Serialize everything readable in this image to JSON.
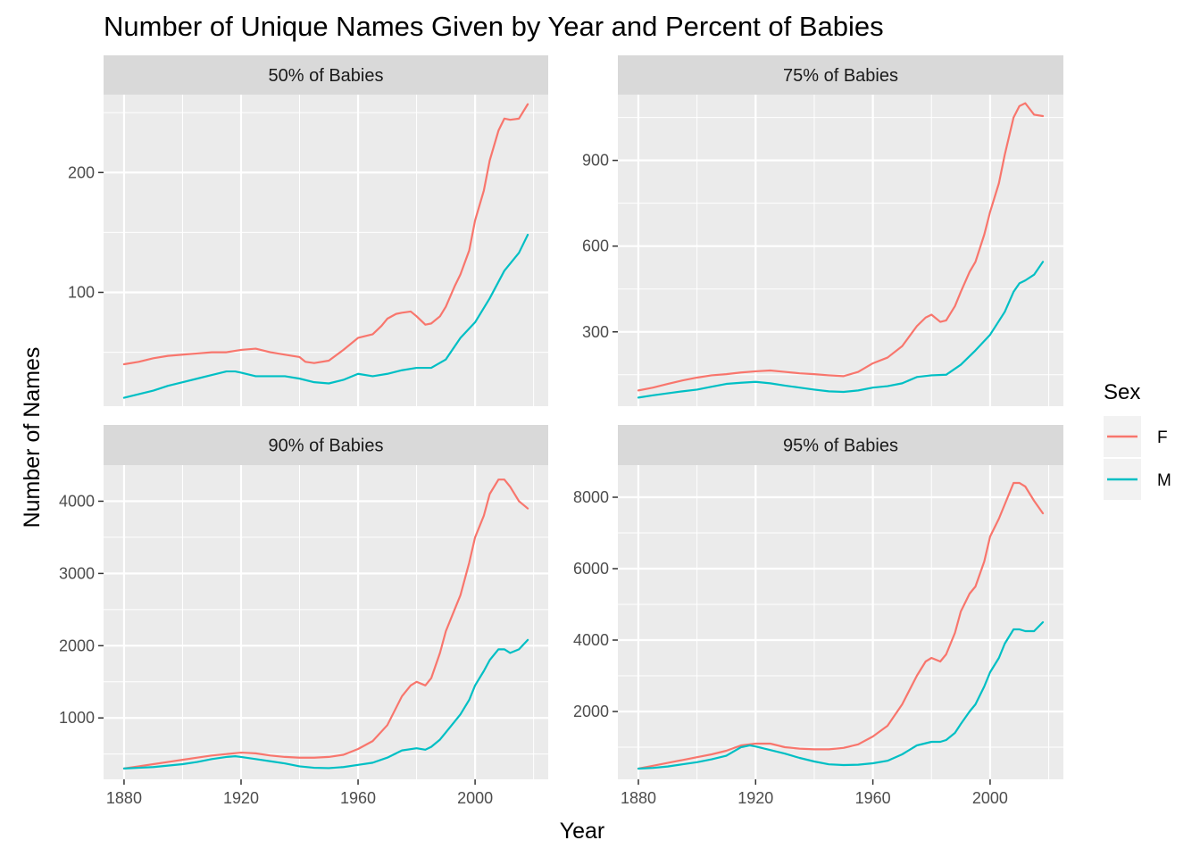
{
  "chart_data": {
    "type": "line",
    "title": "Number of Unique Names Given by Year and Percent of Babies",
    "xlabel": "Year",
    "ylabel": "Number of Names",
    "legend": {
      "title": "Sex",
      "position": "right",
      "entries": [
        {
          "label": "F",
          "color": "#F8766D"
        },
        {
          "label": "M",
          "color": "#00BFC4"
        }
      ]
    },
    "x_ticks": [
      1880,
      1920,
      1960,
      2000
    ],
    "grid": true,
    "panels": [
      {
        "label": "50% of Babies",
        "xlim": [
          1873,
          2025
        ],
        "ylim": [
          5,
          265
        ],
        "y_ticks": [
          100,
          200
        ],
        "series": [
          {
            "name": "F",
            "x": [
              1880,
              1885,
              1890,
              1895,
              1900,
              1905,
              1910,
              1915,
              1920,
              1925,
              1930,
              1935,
              1940,
              1942,
              1945,
              1950,
              1955,
              1960,
              1965,
              1968,
              1970,
              1973,
              1975,
              1978,
              1980,
              1983,
              1985,
              1988,
              1990,
              1993,
              1995,
              1998,
              2000,
              2003,
              2005,
              2008,
              2010,
              2012,
              2015,
              2018
            ],
            "y": [
              40,
              42,
              45,
              47,
              48,
              49,
              50,
              50,
              52,
              53,
              50,
              48,
              46,
              42,
              41,
              43,
              52,
              62,
              65,
              72,
              78,
              82,
              83,
              84,
              80,
              73,
              74,
              80,
              88,
              105,
              115,
              135,
              160,
              185,
              210,
              235,
              245,
              244,
              245,
              257
            ]
          },
          {
            "name": "M",
            "x": [
              1880,
              1885,
              1890,
              1895,
              1900,
              1905,
              1910,
              1915,
              1918,
              1920,
              1925,
              1930,
              1935,
              1940,
              1945,
              1950,
              1955,
              1960,
              1965,
              1970,
              1975,
              1980,
              1985,
              1990,
              1995,
              2000,
              2005,
              2010,
              2015,
              2018
            ],
            "y": [
              12,
              15,
              18,
              22,
              25,
              28,
              31,
              34,
              34,
              33,
              30,
              30,
              30,
              28,
              25,
              24,
              27,
              32,
              30,
              32,
              35,
              37,
              37,
              44,
              62,
              75,
              95,
              118,
              133,
              148
            ]
          }
        ]
      },
      {
        "label": "75% of Babies",
        "xlim": [
          1873,
          2025
        ],
        "ylim": [
          40,
          1130
        ],
        "y_ticks": [
          300,
          600,
          900
        ],
        "series": [
          {
            "name": "F",
            "x": [
              1880,
              1885,
              1890,
              1895,
              1900,
              1905,
              1910,
              1915,
              1920,
              1925,
              1930,
              1935,
              1940,
              1945,
              1950,
              1955,
              1960,
              1965,
              1970,
              1975,
              1978,
              1980,
              1983,
              1985,
              1988,
              1990,
              1993,
              1995,
              1998,
              2000,
              2003,
              2005,
              2008,
              2010,
              2012,
              2015,
              2018
            ],
            "y": [
              95,
              105,
              118,
              130,
              140,
              148,
              152,
              158,
              162,
              165,
              160,
              155,
              152,
              148,
              145,
              160,
              190,
              210,
              250,
              320,
              350,
              360,
              335,
              340,
              390,
              440,
              510,
              545,
              640,
              720,
              820,
              920,
              1050,
              1090,
              1100,
              1060,
              1055
            ]
          },
          {
            "name": "M",
            "x": [
              1880,
              1885,
              1890,
              1895,
              1900,
              1905,
              1910,
              1915,
              1920,
              1925,
              1930,
              1935,
              1940,
              1945,
              1950,
              1955,
              1960,
              1965,
              1970,
              1975,
              1980,
              1985,
              1990,
              1995,
              2000,
              2005,
              2008,
              2010,
              2012,
              2015,
              2018
            ],
            "y": [
              70,
              78,
              85,
              92,
              98,
              108,
              118,
              122,
              125,
              120,
              112,
              105,
              98,
              92,
              90,
              95,
              105,
              110,
              120,
              142,
              148,
              150,
              185,
              235,
              290,
              370,
              440,
              470,
              480,
              500,
              545
            ]
          }
        ]
      },
      {
        "label": "90% of Babies",
        "xlim": [
          1873,
          2025
        ],
        "ylim": [
          150,
          4500
        ],
        "y_ticks": [
          1000,
          2000,
          3000,
          4000
        ],
        "series": [
          {
            "name": "F",
            "x": [
              1880,
              1885,
              1890,
              1895,
              1900,
              1905,
              1910,
              1915,
              1920,
              1925,
              1930,
              1935,
              1940,
              1945,
              1950,
              1955,
              1960,
              1965,
              1970,
              1975,
              1978,
              1980,
              1983,
              1985,
              1988,
              1990,
              1993,
              1995,
              1998,
              2000,
              2003,
              2005,
              2008,
              2010,
              2012,
              2015,
              2018
            ],
            "y": [
              300,
              330,
              360,
              390,
              420,
              450,
              480,
              500,
              520,
              510,
              480,
              460,
              450,
              450,
              460,
              490,
              570,
              680,
              900,
              1300,
              1450,
              1500,
              1450,
              1550,
              1900,
              2200,
              2500,
              2700,
              3150,
              3500,
              3800,
              4100,
              4300,
              4300,
              4200,
              4000,
              3900
            ]
          },
          {
            "name": "M",
            "x": [
              1880,
              1885,
              1890,
              1895,
              1900,
              1905,
              1910,
              1915,
              1918,
              1920,
              1925,
              1930,
              1935,
              1940,
              1945,
              1950,
              1955,
              1960,
              1965,
              1970,
              1975,
              1980,
              1983,
              1985,
              1988,
              1990,
              1993,
              1995,
              1998,
              2000,
              2003,
              2005,
              2008,
              2010,
              2012,
              2015,
              2018
            ],
            "y": [
              300,
              310,
              320,
              340,
              360,
              390,
              430,
              460,
              470,
              460,
              430,
              400,
              370,
              330,
              310,
              305,
              320,
              350,
              380,
              450,
              550,
              580,
              560,
              600,
              700,
              800,
              950,
              1050,
              1250,
              1450,
              1650,
              1800,
              1950,
              1950,
              1900,
              1950,
              2080
            ]
          }
        ]
      },
      {
        "label": "95% of Babies",
        "xlim": [
          1873,
          2025
        ],
        "ylim": [
          100,
          8900
        ],
        "y_ticks": [
          2000,
          4000,
          6000,
          8000
        ],
        "series": [
          {
            "name": "F",
            "x": [
              1880,
              1885,
              1890,
              1895,
              1900,
              1905,
              1910,
              1915,
              1920,
              1925,
              1930,
              1935,
              1940,
              1945,
              1950,
              1955,
              1960,
              1965,
              1970,
              1975,
              1978,
              1980,
              1983,
              1985,
              1988,
              1990,
              1993,
              1995,
              1998,
              2000,
              2003,
              2005,
              2008,
              2010,
              2012,
              2015,
              2018
            ],
            "y": [
              400,
              480,
              560,
              640,
              720,
              800,
              900,
              1050,
              1100,
              1100,
              1000,
              960,
              940,
              940,
              980,
              1080,
              1300,
              1600,
              2200,
              3000,
              3400,
              3500,
              3400,
              3600,
              4200,
              4800,
              5300,
              5500,
              6200,
              6900,
              7400,
              7800,
              8400,
              8400,
              8300,
              7900,
              7550
            ]
          },
          {
            "name": "M",
            "x": [
              1880,
              1885,
              1890,
              1895,
              1900,
              1905,
              1910,
              1915,
              1918,
              1920,
              1925,
              1930,
              1935,
              1940,
              1945,
              1950,
              1955,
              1960,
              1965,
              1970,
              1975,
              1980,
              1983,
              1985,
              1988,
              1990,
              1993,
              1995,
              1998,
              2000,
              2003,
              2005,
              2008,
              2010,
              2012,
              2015,
              2018
            ],
            "y": [
              400,
              420,
              460,
              520,
              580,
              660,
              760,
              1000,
              1050,
              1020,
              920,
              820,
              700,
              600,
              520,
              500,
              510,
              550,
              620,
              800,
              1050,
              1150,
              1150,
              1200,
              1400,
              1650,
              2000,
              2200,
              2700,
              3100,
              3500,
              3900,
              4300,
              4300,
              4250,
              4250,
              4500
            ]
          }
        ]
      }
    ]
  }
}
